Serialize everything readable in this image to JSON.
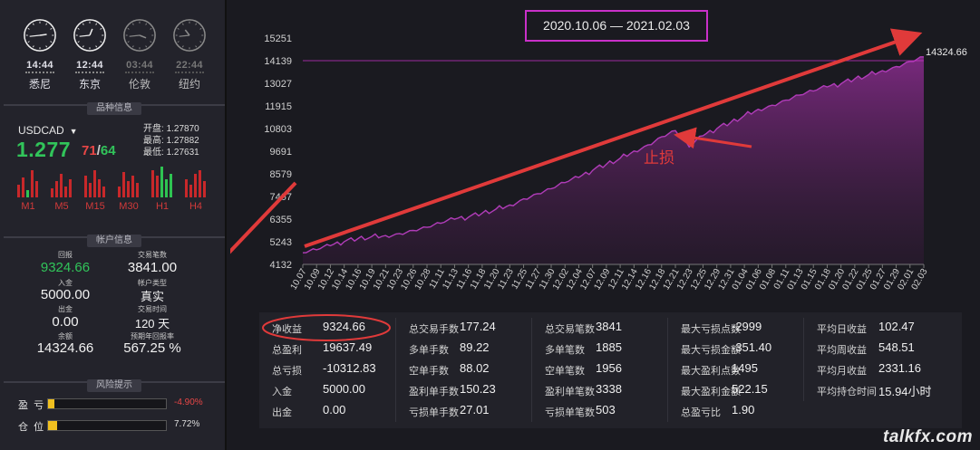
{
  "clocks": [
    {
      "time": "14:44",
      "city": "悉尼",
      "active": true,
      "h": 14,
      "m": 44
    },
    {
      "time": "12:44",
      "city": "东京",
      "active": true,
      "h": 12,
      "m": 44
    },
    {
      "time": "03:44",
      "city": "伦敦",
      "active": false,
      "h": 3,
      "m": 44
    },
    {
      "time": "22:44",
      "city": "纽约",
      "active": false,
      "h": 22,
      "m": 44
    }
  ],
  "symbol_section": "品种信息",
  "symbol": {
    "name": "USDCAD",
    "price_main": "1.277",
    "price_red": "71",
    "price_sep": "/",
    "price_green": "64",
    "open_label": "开盘:",
    "open": "1.27870",
    "high_label": "最高:",
    "high": "1.27882",
    "low_label": "最低:",
    "low": "1.27631",
    "timeframes": [
      "M1",
      "M5",
      "M15",
      "M30",
      "H1",
      "H4"
    ]
  },
  "account_section": "帐户信息",
  "account": {
    "drawdown_label": "回报",
    "drawdown": "9324.66",
    "trades_label": "交易笔数",
    "trades": "3841.00",
    "deposit_label": "入金",
    "deposit": "5000.00",
    "type_label": "帐户类型",
    "type": "真实",
    "withdraw_label": "出金",
    "withdraw": "0.00",
    "days_label": "交易时间",
    "days": "120 天",
    "balance_label": "余额",
    "balance": "14324.66",
    "annual_label": "预期年回报率",
    "annual": "567.25 %"
  },
  "risk_section": "风险提示",
  "risk": [
    {
      "label": "盈  亏",
      "pct": "-4.90%",
      "value": 0.049,
      "color": "#e84646"
    },
    {
      "label": "仓  位",
      "pct": "7.72%",
      "value": 0.0772,
      "color": "#dddddd"
    }
  ],
  "chart": {
    "date_range": "2020.10.06 — 2021.02.03",
    "end_label": "14324.66",
    "annotation": "止损",
    "accent": "#c930c9",
    "line_color": "#b03cb8",
    "arrow_color": "#e03a3a"
  },
  "chart_data": {
    "type": "area",
    "ylim": [
      4132,
      15251
    ],
    "y_ticks": [
      "15251",
      "14139",
      "13027",
      "11915",
      "10803",
      "9691",
      "8579",
      "7467",
      "6355",
      "5243",
      "4132"
    ],
    "x_ticks": [
      "10.07",
      "10.09",
      "10.12",
      "10.14",
      "10.16",
      "10.19",
      "10.21",
      "10.23",
      "10.26",
      "10.28",
      "11.11",
      "11.13",
      "11.16",
      "11.18",
      "11.20",
      "11.23",
      "11.25",
      "11.27",
      "11.30",
      "12.02",
      "12.04",
      "12.07",
      "12.09",
      "12.11",
      "12.14",
      "12.16",
      "12.18",
      "12.21",
      "12.23",
      "12.25",
      "12.29",
      "12.31",
      "01.04",
      "01.06",
      "01.08",
      "01.11",
      "01.13",
      "01.15",
      "01.18",
      "01.20",
      "01.22",
      "01.25",
      "01.27",
      "01.29",
      "02.01",
      "02.03"
    ],
    "values": [
      4700,
      4850,
      5050,
      5250,
      5400,
      5500,
      5550,
      5650,
      5800,
      5950,
      6150,
      6350,
      6450,
      6650,
      6850,
      7050,
      7350,
      7600,
      7850,
      8150,
      8400,
      8750,
      9050,
      9350,
      9700,
      10000,
      10400,
      10700,
      9900,
      10450,
      10800,
      11100,
      11450,
      11750,
      11950,
      12200,
      12450,
      12650,
      12850,
      13000,
      13250,
      13450,
      13650,
      13850,
      14100,
      14324.66
    ],
    "grid": false
  },
  "stats": [
    [
      {
        "l": "净收益",
        "v": "9324.66"
      },
      {
        "l": "总盈利",
        "v": "19637.49"
      },
      {
        "l": "总亏损",
        "v": "-10312.83"
      },
      {
        "l": "入金",
        "v": "5000.00"
      },
      {
        "l": "出金",
        "v": "0.00"
      }
    ],
    [
      {
        "l": "总交易手数",
        "v": "177.24"
      },
      {
        "l": "多单手数",
        "v": "89.22"
      },
      {
        "l": "空单手数",
        "v": "88.02"
      },
      {
        "l": "盈利单手数",
        "v": "150.23"
      },
      {
        "l": "亏损单手数",
        "v": "27.01"
      }
    ],
    [
      {
        "l": "总交易笔数",
        "v": "3841"
      },
      {
        "l": "多单笔数",
        "v": "1885"
      },
      {
        "l": "空单笔数",
        "v": "1956"
      },
      {
        "l": "盈利单笔数",
        "v": "3338"
      },
      {
        "l": "亏损单笔数",
        "v": "503"
      }
    ],
    [
      {
        "l": "最大亏损点数",
        "v": "-2999"
      },
      {
        "l": "最大亏损金额",
        "v": "-351.40"
      },
      {
        "l": "最大盈利点数",
        "v": "1495"
      },
      {
        "l": "最大盈利金额",
        "v": "522.15"
      },
      {
        "l": "总盈亏比",
        "v": "1.90"
      }
    ],
    [
      {
        "l": "平均日收益",
        "v": "102.47"
      },
      {
        "l": "平均周收益",
        "v": "548.51"
      },
      {
        "l": "平均月收益",
        "v": "2331.16"
      },
      {
        "l": "平均持仓时间",
        "v": "15.94小时"
      }
    ]
  ],
  "watermark": "talkfx.com"
}
